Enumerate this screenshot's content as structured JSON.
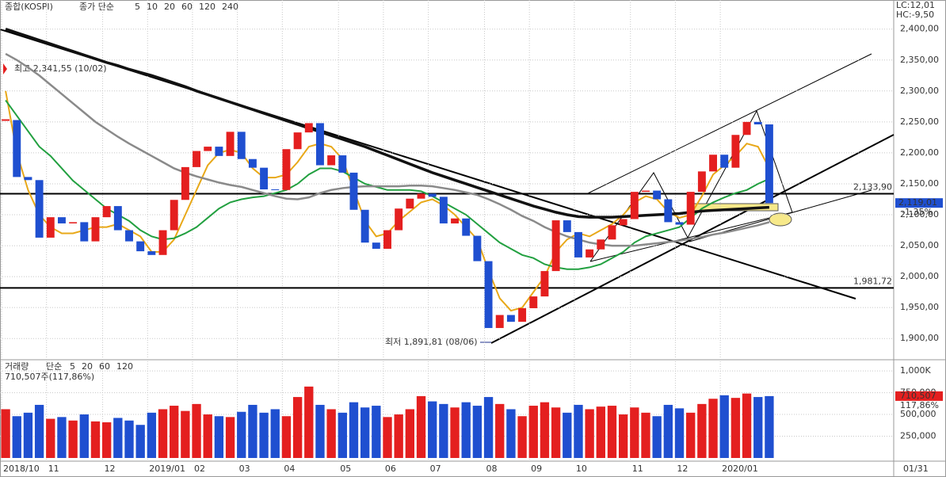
{
  "chart_data": [
    {
      "type": "candlestick",
      "title": "종합(KOSPI)",
      "legend_label": "종가 단순",
      "categories": [
        "2018/10",
        null,
        null,
        null,
        "11",
        null,
        null,
        null,
        null,
        "12",
        null,
        null,
        null,
        "2019/01",
        null,
        null,
        null,
        "02",
        null,
        null,
        null,
        "03",
        null,
        null,
        null,
        "04",
        null,
        null,
        null,
        null,
        "05",
        null,
        null,
        null,
        "06",
        null,
        null,
        null,
        "07",
        null,
        null,
        null,
        null,
        "08",
        null,
        null,
        null,
        "09",
        null,
        null,
        null,
        "10",
        null,
        null,
        null,
        null,
        "11",
        null,
        null,
        null,
        "12",
        null,
        null,
        null,
        "2020/01",
        null,
        null,
        null,
        null
      ],
      "close": [
        2253,
        2161,
        2156,
        2063,
        2096,
        2086,
        2088,
        2057,
        2096,
        2114,
        2075,
        2057,
        2041,
        2035,
        2075,
        2124,
        2177,
        2203,
        2210,
        2195,
        2234,
        2190,
        2176,
        2141,
        2140,
        2206,
        2233,
        2248,
        2180,
        2196,
        2168,
        2108,
        2055,
        2045,
        2075,
        2110,
        2126,
        2134,
        2129,
        2086,
        2094,
        2066,
        2025,
        1917,
        1938,
        1927,
        1949,
        1968,
        2009,
        2091,
        2072,
        2031,
        2044,
        2060,
        2083,
        2093,
        2137,
        2139,
        2125,
        2088,
        2084,
        2137,
        2170,
        2197,
        2176,
        2229,
        2250,
        2246,
        2119
      ],
      "up_color": "#e41f1f",
      "down_color": "#1f4fd0",
      "ma": [
        {
          "name": "5",
          "color": "#b030b0"
        },
        {
          "name": "10",
          "color": "#1c2f8c"
        },
        {
          "name": "20",
          "color": "#e8a818",
          "values": [
            2300,
            2200,
            2140,
            2100,
            2080,
            2070,
            2070,
            2075,
            2080,
            2080,
            2085,
            2075,
            2065,
            2040,
            2040,
            2060,
            2100,
            2140,
            2180,
            2200,
            2205,
            2200,
            2175,
            2160,
            2160,
            2165,
            2185,
            2210,
            2215,
            2210,
            2190,
            2140,
            2090,
            2065,
            2070,
            2090,
            2105,
            2120,
            2125,
            2115,
            2100,
            2080,
            2060,
            2010,
            1965,
            1945,
            1950,
            1975,
            2000,
            2040,
            2060,
            2070,
            2065,
            2075,
            2085,
            2100,
            2120,
            2130,
            2125,
            2105,
            2095,
            2100,
            2130,
            2165,
            2180,
            2195,
            2215,
            2210,
            2175
          ]
        },
        {
          "name": "60",
          "color": "#22a040",
          "values": [
            2285,
            2260,
            2235,
            2210,
            2195,
            2175,
            2155,
            2140,
            2125,
            2110,
            2100,
            2090,
            2075,
            2065,
            2060,
            2062,
            2070,
            2080,
            2095,
            2110,
            2120,
            2125,
            2128,
            2130,
            2135,
            2140,
            2150,
            2165,
            2175,
            2175,
            2170,
            2160,
            2150,
            2145,
            2140,
            2140,
            2140,
            2138,
            2130,
            2120,
            2110,
            2100,
            2085,
            2070,
            2055,
            2045,
            2035,
            2030,
            2020,
            2015,
            2012,
            2012,
            2015,
            2020,
            2030,
            2040,
            2055,
            2065,
            2070,
            2075,
            2080,
            2095,
            2110,
            2120,
            2128,
            2135,
            2140,
            2150,
            2158
          ]
        },
        {
          "name": "120",
          "color": "#8a8a8a",
          "values": [
            2360,
            2350,
            2338,
            2325,
            2310,
            2295,
            2280,
            2265,
            2250,
            2238,
            2226,
            2215,
            2205,
            2195,
            2185,
            2175,
            2168,
            2162,
            2157,
            2152,
            2148,
            2145,
            2140,
            2135,
            2130,
            2126,
            2125,
            2128,
            2135,
            2140,
            2143,
            2145,
            2146,
            2146,
            2146,
            2146,
            2147,
            2147,
            2146,
            2143,
            2140,
            2136,
            2132,
            2125,
            2117,
            2108,
            2098,
            2090,
            2080,
            2072,
            2065,
            2060,
            2055,
            2052,
            2050,
            2050,
            2050,
            2052,
            2054,
            2056,
            2058,
            2061,
            2064,
            2068,
            2071,
            2075,
            2079,
            2083,
            2088
          ]
        },
        {
          "name": "240",
          "color": "#111111",
          "values": [
            2400,
            2394,
            2388,
            2382,
            2376,
            2370,
            2364,
            2358,
            2352,
            2346,
            2341,
            2335,
            2330,
            2325,
            2319,
            2313,
            2307,
            2300,
            2294,
            2288,
            2282,
            2276,
            2270,
            2264,
            2258,
            2252,
            2246,
            2240,
            2234,
            2228,
            2222,
            2216,
            2210,
            2203,
            2196,
            2189,
            2182,
            2175,
            2168,
            2162,
            2156,
            2150,
            2144,
            2138,
            2132,
            2126,
            2120,
            2114,
            2109,
            2104,
            2100,
            2097,
            2096,
            2096,
            2096,
            2097,
            2098,
            2099,
            2100,
            2101,
            2102,
            2104,
            2106,
            2107,
            2108,
            2109,
            2110,
            2111,
            2112
          ]
        }
      ],
      "ylim": [
        1867,
        2447
      ],
      "yticks": [
        {
          "value": 1900,
          "label": "1,900,00"
        },
        {
          "value": 1950,
          "label": "1,950,00"
        },
        {
          "value": 2000,
          "label": "2,000,00"
        },
        {
          "value": 2050,
          "label": "2,050,00"
        },
        {
          "value": 2100,
          "label": "2,100,00"
        },
        {
          "value": 2150,
          "label": "2,150,00"
        },
        {
          "value": 2200,
          "label": "2,200,00"
        },
        {
          "value": 2250,
          "label": "2,250,00"
        },
        {
          "value": 2300,
          "label": "2,300,00"
        },
        {
          "value": 2350,
          "label": "2,350,00"
        },
        {
          "value": 2400,
          "label": "2,400,00"
        }
      ],
      "hlines": [
        {
          "value": 2133.9,
          "label": "2,133,90"
        },
        {
          "value": 1981.72,
          "label": "1,981,72"
        }
      ],
      "high_label": "최고 2,341,55 (10/02)",
      "low_label": "최저 1,891,81 (08/06)",
      "last": {
        "value": 2119.01,
        "label": "2,119,01"
      },
      "change": "-1,35%",
      "lc": "LC:12,01",
      "hc": "HC:-9,50",
      "x_end_label": "01/31"
    },
    {
      "type": "bar",
      "title": "거래량",
      "legend_label": "단순",
      "ma": [
        {
          "name": "5",
          "color": "#b030b0"
        },
        {
          "name": "20",
          "color": "#e8a818"
        },
        {
          "name": "60",
          "color": "#22a040"
        },
        {
          "name": "120",
          "color": "#8a8a8a"
        }
      ],
      "summary": "710,507주(117,86%)",
      "values": [
        560000,
        480000,
        520000,
        610000,
        450000,
        470000,
        430000,
        500000,
        420000,
        410000,
        460000,
        430000,
        380000,
        520000,
        560000,
        600000,
        540000,
        620000,
        500000,
        480000,
        470000,
        530000,
        610000,
        520000,
        560000,
        480000,
        700000,
        820000,
        610000,
        560000,
        520000,
        640000,
        580000,
        600000,
        470000,
        500000,
        560000,
        710000,
        650000,
        620000,
        580000,
        640000,
        600000,
        700000,
        620000,
        560000,
        480000,
        600000,
        640000,
        580000,
        520000,
        610000,
        560000,
        590000,
        600000,
        500000,
        580000,
        520000,
        480000,
        610000,
        570000,
        520000,
        620000,
        680000,
        720000,
        690000,
        740000,
        700000,
        710507
      ],
      "ylim": [
        0,
        1110000
      ],
      "yticks": [
        {
          "value": 250000,
          "label": "250,000"
        },
        {
          "value": 500000,
          "label": "500,000"
        },
        {
          "value": 750000,
          "label": "750,000"
        },
        {
          "value": 1000000,
          "label": "1,000K"
        }
      ],
      "last": {
        "value": 710507,
        "label": "710,507"
      },
      "ratio": "117,86%"
    }
  ]
}
